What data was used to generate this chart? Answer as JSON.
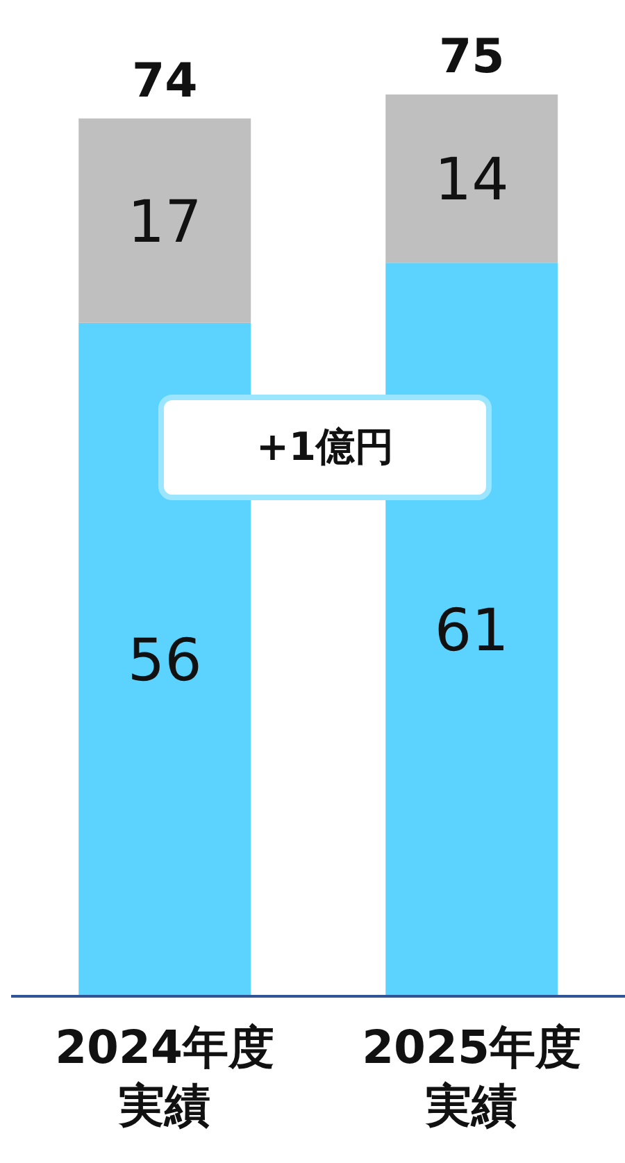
{
  "chart_data": {
    "type": "bar",
    "stacked": true,
    "categories": [
      "2024年度実績",
      "2025年度実績"
    ],
    "series": [
      {
        "color": "#5bd3fe",
        "values": [
          56,
          61
        ]
      },
      {
        "color": "#bfbfbf",
        "values": [
          17,
          14
        ]
      }
    ],
    "totals": [
      "74",
      "75"
    ],
    "data_labels": true,
    "annotations": [
      "+1億円"
    ]
  }
}
